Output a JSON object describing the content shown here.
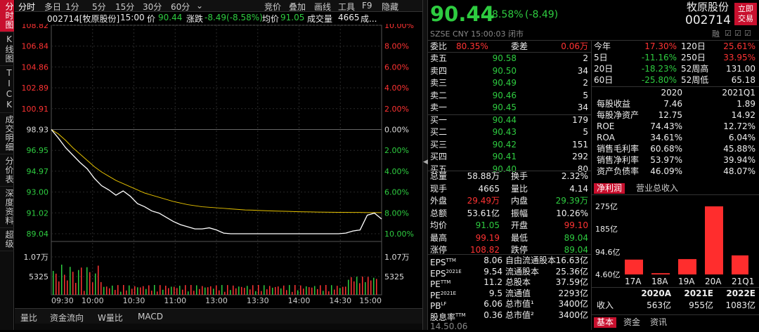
{
  "left_tabs": [
    "分时图",
    "K线图",
    "TICK",
    "成交明细",
    "分价表",
    "深度资料",
    "超级"
  ],
  "topbar": {
    "items": [
      "分时",
      "多日",
      "1分",
      "5分",
      "15分",
      "30分",
      "60分",
      "⌄"
    ],
    "right": [
      "竞价",
      "叠加",
      "画线",
      "工具",
      "F9",
      "隐藏"
    ]
  },
  "info": {
    "code": "002714[牧原股份]",
    "time": "15:00",
    "price_label": "价",
    "price": "90.44",
    "chg_label": "涨跌",
    "chg": "-8.49(-8.58%)",
    "avg_label": "均价",
    "avg": "91.05",
    "vol_label": "成交量",
    "vol": "4665",
    "more": "成..."
  },
  "chart_data": {
    "type": "line",
    "xlabels": [
      "09:30",
      "10:00",
      "10:30",
      "11:00",
      "13:00",
      "13:30",
      "14:00",
      "14:30",
      "15:00"
    ],
    "price_ticks": [
      "108.82",
      "106.84",
      "104.86",
      "102.89",
      "100.91",
      "98.93",
      "96.95",
      "94.97",
      "93.00",
      "91.02",
      "89.04"
    ],
    "pct_ticks": [
      "10.00%",
      "8.00%",
      "6.00%",
      "4.00%",
      "2.00%",
      "0.00%",
      "2.00%",
      "4.00%",
      "6.00%",
      "8.00%",
      "10.00%"
    ],
    "vol_ticks": [
      "1.07万",
      "5325"
    ],
    "price_series": [
      98.93,
      98.1,
      97.2,
      96.5,
      95.8,
      95.2,
      94.3,
      93.6,
      93.2,
      92.7,
      93.1,
      92.6,
      91.9,
      91.6,
      91.2,
      91.0,
      90.6,
      90.2,
      89.9,
      89.7,
      89.5,
      89.5,
      89.6,
      89.4,
      89.1,
      89.04,
      89.04,
      89.04,
      89.04,
      89.04,
      89.04,
      89.04,
      89.04,
      89.04,
      89.04,
      89.04,
      89.04,
      89.04,
      89.04,
      89.04,
      89.04,
      89.1,
      89.3,
      89.4,
      90.8,
      91.0,
      90.44
    ],
    "avg_series": [
      98.93,
      98.5,
      97.9,
      97.2,
      96.6,
      96.0,
      95.4,
      94.9,
      94.5,
      94.1,
      93.8,
      93.5,
      93.2,
      92.9,
      92.7,
      92.5,
      92.3,
      92.1,
      91.95,
      91.8,
      91.7,
      91.6,
      91.55,
      91.5,
      91.45,
      91.4,
      91.35,
      91.3,
      91.28,
      91.25,
      91.22,
      91.2,
      91.18,
      91.16,
      91.14,
      91.12,
      91.11,
      91.1,
      91.09,
      91.08,
      91.07,
      91.07,
      91.06,
      91.06,
      91.05,
      91.05,
      91.05
    ],
    "ylim": [
      89.04,
      108.82
    ],
    "prev_close": 98.93
  },
  "quote": {
    "price": "90.44",
    "chg_pct": "-8.58%",
    "chg": "(-8.49)",
    "name": "牧原股份",
    "code": "002714",
    "sub": "SZSE  CNY  15:00:03  闭市",
    "btn": "立即交易",
    "badge": "融"
  },
  "weibi": {
    "l1": "委比",
    "v1": "80.35%",
    "l2": "委差",
    "v2": "0.06万"
  },
  "book": [
    [
      "卖五",
      "90.58",
      "2"
    ],
    [
      "卖四",
      "90.50",
      "34"
    ],
    [
      "卖三",
      "90.49",
      "2"
    ],
    [
      "卖二",
      "90.46",
      "5"
    ],
    [
      "卖一",
      "90.45",
      "34"
    ],
    [
      "买一",
      "90.44",
      "179"
    ],
    [
      "买二",
      "90.43",
      "5"
    ],
    [
      "买三",
      "90.42",
      "151"
    ],
    [
      "买四",
      "90.41",
      "292"
    ],
    [
      "买五",
      "90.40",
      "80"
    ]
  ],
  "perf": [
    [
      "今年",
      "17.30%",
      "120日",
      "25.61%"
    ],
    [
      "5日",
      "-11.16%",
      "250日",
      "33.95%"
    ],
    [
      "20日",
      "-18.23%",
      "52周高",
      "131.00"
    ],
    [
      "60日",
      "-25.80%",
      "52周低",
      "65.18"
    ]
  ],
  "fin_head": [
    "2020",
    "2021Q1"
  ],
  "fin": [
    [
      "每股收益",
      "7.46",
      "1.89"
    ],
    [
      "每股净资产",
      "12.75",
      "14.92"
    ],
    [
      "ROE",
      "74.43%",
      "12.72%"
    ],
    [
      "ROA",
      "34.61%",
      "6.04%"
    ],
    [
      "销售毛利率",
      "60.68%",
      "45.88%"
    ],
    [
      "销售净利率",
      "53.97%",
      "39.94%"
    ],
    [
      "资产负债率",
      "46.09%",
      "48.07%"
    ]
  ],
  "stats": [
    [
      "总量",
      "58.88万",
      "换手",
      "2.32%"
    ],
    [
      "现手",
      "4665",
      "量比",
      "4.14"
    ],
    [
      "外盘",
      "29.49万",
      "内盘",
      "29.39万"
    ],
    [
      "总额",
      "53.61亿",
      "振幅",
      "10.26%"
    ],
    [
      "均价",
      "91.05",
      "开盘",
      "99.10"
    ],
    [
      "最高",
      "99.19",
      "最低",
      "89.04"
    ],
    [
      "涨停",
      "108.82",
      "跌停",
      "89.04"
    ]
  ],
  "val": [
    [
      "EPS",
      "TTM",
      "8.06",
      "自由流通股本",
      "16.63亿"
    ],
    [
      "EPS",
      "2021E",
      "9.54",
      "流通股本",
      "25.36亿"
    ],
    [
      "PE",
      "TTM",
      "11.2",
      "总股本",
      "37.59亿"
    ],
    [
      "PE",
      "2021E",
      "9.5",
      "流通值",
      "2293亿"
    ],
    [
      "PB",
      "LF",
      "6.06",
      "总市值¹",
      "3400亿"
    ],
    [
      "股息率",
      "TTM",
      "0.36",
      "总市值²",
      "3400亿"
    ]
  ],
  "val_more": "14.50.06",
  "profit_tabs": [
    "净利润",
    "营业总收入"
  ],
  "profit_chart": {
    "type": "bar",
    "categories": [
      "17A",
      "18A",
      "19A",
      "20A",
      "21Q1"
    ],
    "values": [
      60,
      5,
      62,
      275,
      77
    ],
    "yticks": [
      "275亿",
      "185亿",
      "94.6亿",
      "4.60亿"
    ],
    "ylim": [
      0,
      275
    ]
  },
  "forecast": {
    "head": [
      "2020A",
      "2021E",
      "2022E"
    ],
    "label": "收入",
    "vals": [
      "563亿",
      "955亿",
      "1083亿"
    ]
  },
  "bottom_tabs": [
    "量比",
    "资金流向",
    "W量比",
    "MACD"
  ],
  "rp_tabs": [
    "基本",
    "资金",
    "资讯"
  ],
  "colors": {
    "red": "#ff3333",
    "green": "#2ecc40",
    "yellow": "#e6c200"
  }
}
